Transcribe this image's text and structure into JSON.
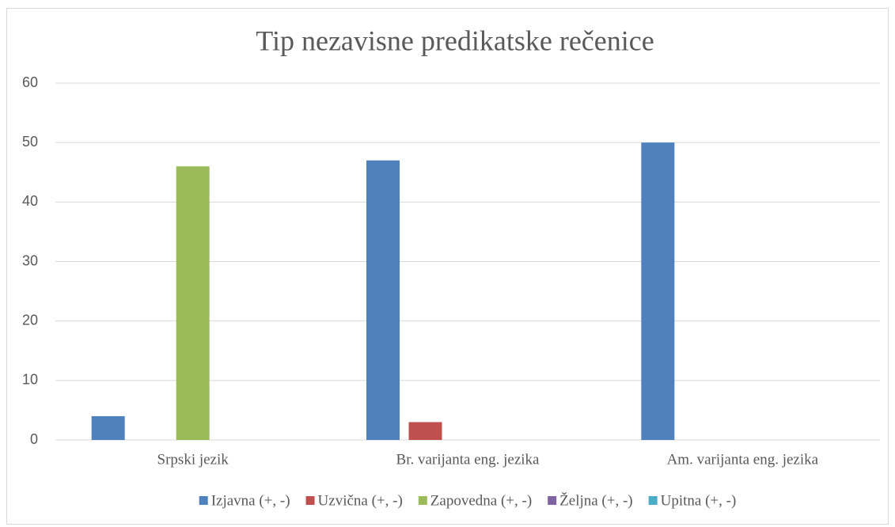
{
  "chart_data": {
    "type": "bar",
    "title": "Tip nezavisne predikatske rečenice",
    "categories": [
      "Srpski jezik",
      "Br. varijanta eng. jezika",
      "Am. varijanta eng. jezika"
    ],
    "series": [
      {
        "name": "Izjavna (+, -)",
        "color": "#4f81bd",
        "values": [
          4,
          47,
          50
        ]
      },
      {
        "name": "Uzvična (+, -)",
        "color": "#c0504d",
        "values": [
          0,
          3,
          0
        ]
      },
      {
        "name": "Zapovedna (+, -)",
        "color": "#9bbb59",
        "values": [
          46,
          0,
          0
        ]
      },
      {
        "name": "Željna (+, -)",
        "color": "#8064a2",
        "values": [
          0,
          0,
          0
        ]
      },
      {
        "name": "Upitna (+, -)",
        "color": "#4bacc6",
        "values": [
          0,
          0,
          0
        ]
      }
    ],
    "ylim": [
      0,
      60
    ],
    "yticks": [
      0,
      10,
      20,
      30,
      40,
      50,
      60
    ],
    "grid": true,
    "legend": "bottom"
  }
}
